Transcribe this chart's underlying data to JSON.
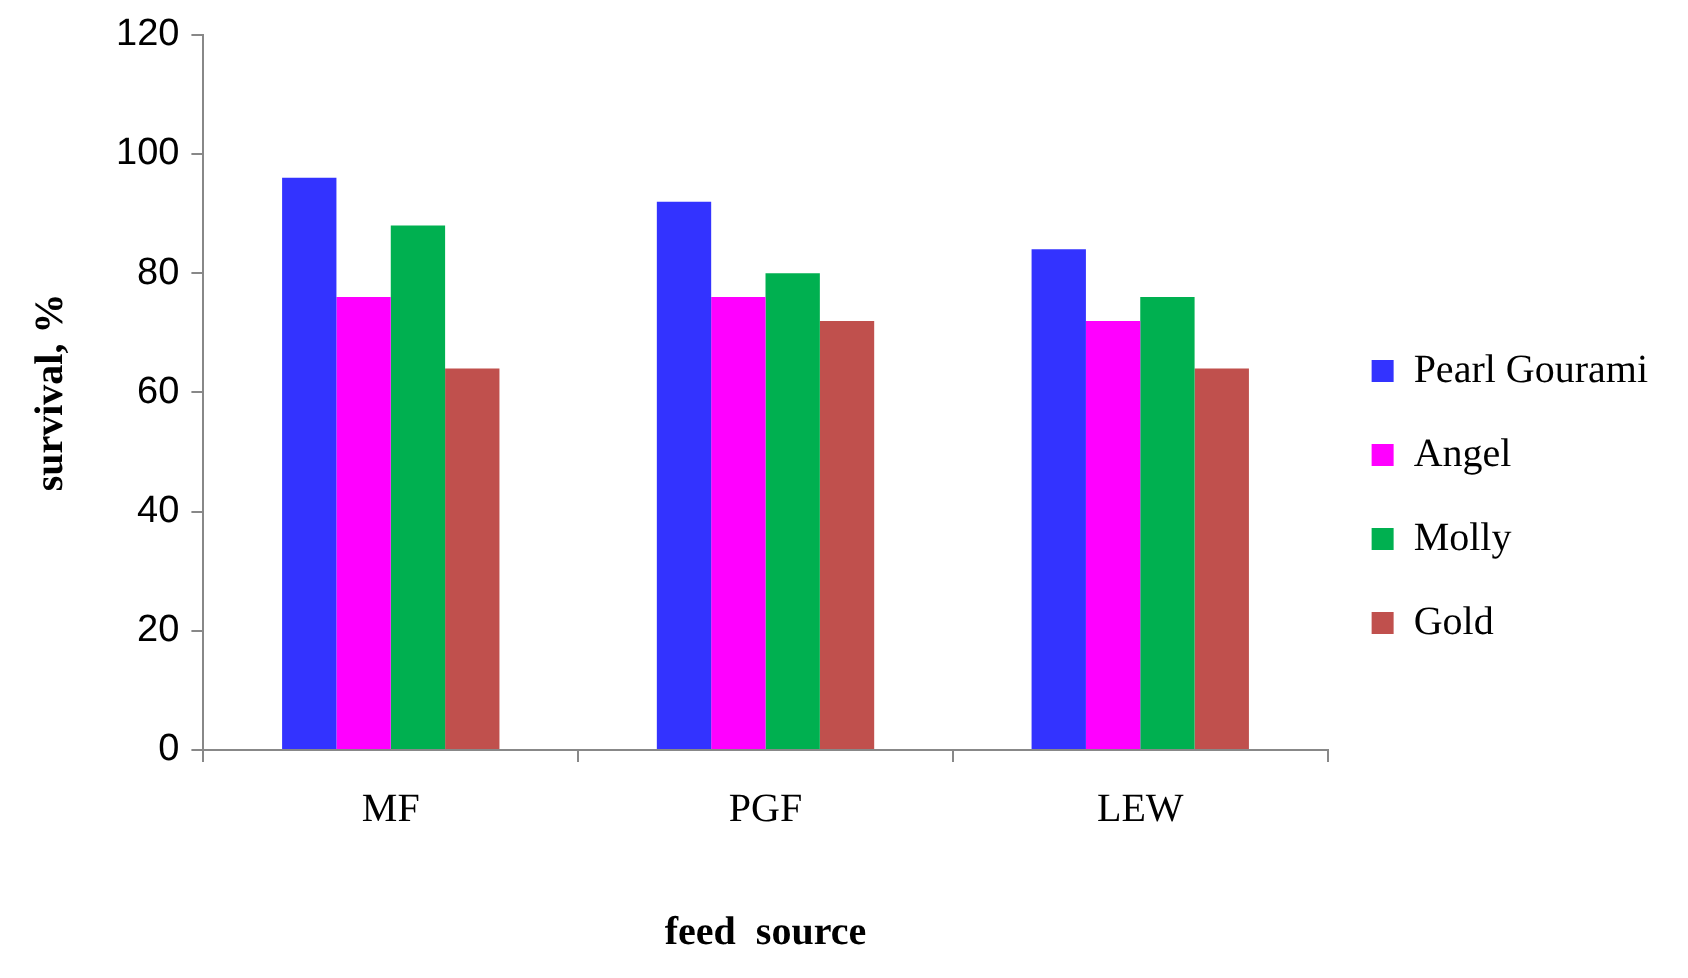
{
  "chart_data": {
    "type": "bar",
    "xlabel": "feed  source",
    "ylabel": "survival, %",
    "categories": [
      "MF",
      "PGF",
      "LEW"
    ],
    "series": [
      {
        "name": "Pearl Gourami",
        "color": "#3333ff",
        "values": [
          96,
          92,
          84
        ]
      },
      {
        "name": "Angel",
        "color": "#ff00ff",
        "values": [
          76,
          76,
          72
        ]
      },
      {
        "name": "Molly",
        "color": "#00b050",
        "values": [
          88,
          80,
          76
        ]
      },
      {
        "name": "Gold",
        "color": "#c0504d",
        "values": [
          64,
          72,
          64
        ]
      }
    ],
    "ylim": [
      0,
      120
    ],
    "yticks": [
      0,
      20,
      40,
      60,
      80,
      100,
      120
    ],
    "grid": false,
    "legend": "right"
  }
}
